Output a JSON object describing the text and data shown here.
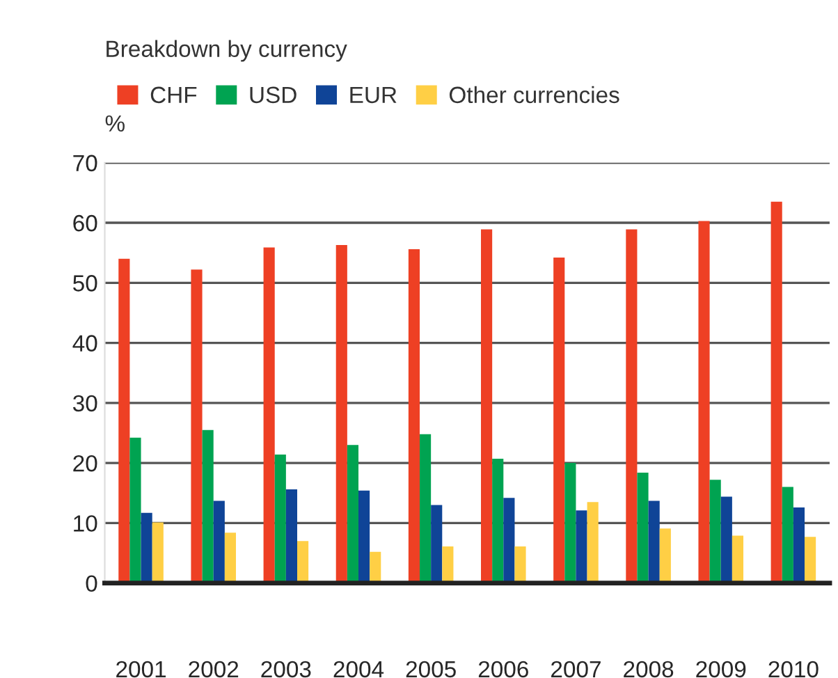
{
  "chart_data": {
    "type": "bar",
    "title": "Breakdown by currency",
    "ylabel": "%",
    "categories": [
      "2001",
      "2002",
      "2003",
      "2004",
      "2005",
      "2006",
      "2007",
      "2008",
      "2009",
      "2010"
    ],
    "series": [
      {
        "name": "CHF",
        "color": "#ee4024",
        "values": [
          54.0,
          52.2,
          55.9,
          56.3,
          55.6,
          58.9,
          54.2,
          58.9,
          60.3,
          63.5
        ]
      },
      {
        "name": "USD",
        "color": "#00a351",
        "values": [
          24.2,
          25.5,
          21.4,
          23.0,
          24.8,
          20.7,
          20.0,
          18.4,
          17.2,
          16.0
        ]
      },
      {
        "name": "EUR",
        "color": "#0f4497",
        "values": [
          11.7,
          13.7,
          15.6,
          15.4,
          13.0,
          14.2,
          12.1,
          13.7,
          14.4,
          12.6
        ]
      },
      {
        "name": "Other currencies",
        "color": "#ffcf45",
        "values": [
          10.1,
          8.4,
          7.0,
          5.2,
          6.1,
          6.1,
          13.5,
          9.1,
          7.9,
          7.7
        ]
      }
    ],
    "ylim": [
      0,
      70
    ],
    "yticks": [
      0,
      10,
      20,
      30,
      40,
      50,
      60,
      70
    ],
    "grid": "y",
    "legend": "top left"
  }
}
